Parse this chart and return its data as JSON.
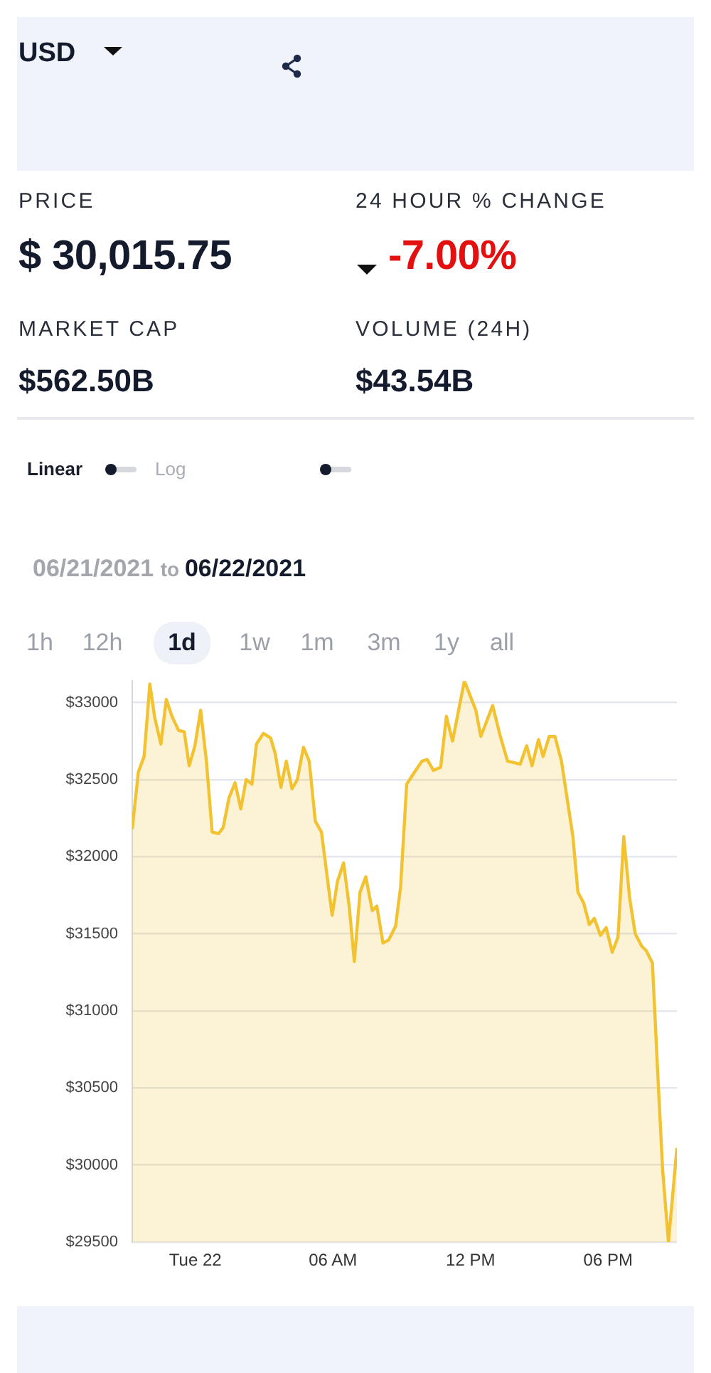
{
  "chart_data": [
    {
      "type": "other",
      "title": "USD",
      "annotations": [
        "PRICE",
        "$ 30,015.75",
        "24 HOUR % CHANGE",
        "-7.00%",
        "MARKET CAP",
        "$562.50B",
        "VOLUME (24H)",
        "$43.54B",
        "Linear",
        "Log"
      ]
    },
    {
      "type": "area",
      "title": "06/21/2021 to 06/22/2021",
      "annotations": [
        "1h",
        "12h",
        "1d",
        "1w",
        "1m",
        "3m",
        "1y",
        "all"
      ],
      "x": [
        "2021-06-21T21:15",
        "2021-06-21T21:31",
        "2021-06-21T21:46",
        "2021-06-21T22:01",
        "2021-06-21T22:14",
        "2021-06-21T22:30",
        "2021-06-21T22:44",
        "2021-06-21T22:59",
        "2021-06-21T23:16",
        "2021-06-21T23:31",
        "2021-06-21T23:44",
        "2021-06-21T23:59",
        "2021-06-22T00:14",
        "2021-06-22T00:29",
        "2021-06-22T00:44",
        "2021-06-22T01:01",
        "2021-06-22T01:13",
        "2021-06-22T01:28",
        "2021-06-22T01:44",
        "2021-06-22T01:59",
        "2021-06-22T02:13",
        "2021-06-22T02:28",
        "2021-06-22T02:40",
        "2021-06-22T02:58",
        "2021-06-22T03:17",
        "2021-06-22T03:29",
        "2021-06-22T03:44",
        "2021-06-22T03:58",
        "2021-06-22T04:13",
        "2021-06-22T04:27",
        "2021-06-22T04:43",
        "2021-06-22T04:58",
        "2021-06-22T05:14",
        "2021-06-22T05:30",
        "2021-06-22T05:58",
        "2021-06-22T06:12",
        "2021-06-22T06:28",
        "2021-06-22T06:43",
        "2021-06-22T06:56",
        "2021-06-22T07:11",
        "2021-06-22T07:26",
        "2021-06-22T07:43",
        "2021-06-22T07:55",
        "2021-06-22T08:11",
        "2021-06-22T08:26",
        "2021-06-22T08:44",
        "2021-06-22T08:57",
        "2021-06-22T09:13",
        "2021-06-22T09:34",
        "2021-06-22T09:53",
        "2021-06-22T10:07",
        "2021-06-22T10:23",
        "2021-06-22T10:42",
        "2021-06-22T10:57",
        "2021-06-22T11:13",
        "2021-06-22T11:44",
        "2021-06-22T12:14",
        "2021-06-22T12:27",
        "2021-06-22T12:58",
        "2021-06-22T13:17",
        "2021-06-22T13:37",
        "2021-06-22T14:10",
        "2021-06-22T14:27",
        "2021-06-22T14:41",
        "2021-06-22T14:58",
        "2021-06-22T15:10",
        "2021-06-22T15:26",
        "2021-06-22T15:41",
        "2021-06-22T15:58",
        "2021-06-22T16:28",
        "2021-06-22T16:41",
        "2021-06-22T16:56",
        "2021-06-22T17:11",
        "2021-06-22T17:24",
        "2021-06-22T17:40",
        "2021-06-22T17:55",
        "2021-06-22T18:11",
        "2021-06-22T18:26",
        "2021-06-22T18:41",
        "2021-06-22T18:56",
        "2021-06-22T19:11",
        "2021-06-22T19:28",
        "2021-06-22T19:40",
        "2021-06-22T19:56",
        "2021-06-22T20:11",
        "2021-06-22T20:23",
        "2021-06-22T20:38",
        "2021-06-22T21:00"
      ],
      "series": [
        {
          "color": "#f2c230",
          "values": [
            32180,
            32550,
            32650,
            33120,
            32900,
            32730,
            33020,
            32910,
            32820,
            32810,
            32590,
            32720,
            32950,
            32620,
            32160,
            32150,
            32190,
            32380,
            32480,
            32310,
            32500,
            32470,
            32730,
            32800,
            32770,
            32670,
            32450,
            32620,
            32440,
            32500,
            32710,
            32620,
            32230,
            32160,
            31620,
            31840,
            31960,
            31670,
            31320,
            31770,
            31870,
            31650,
            31680,
            31440,
            31460,
            31550,
            31800,
            32470,
            32550,
            32620,
            32630,
            32560,
            32580,
            32910,
            32750,
            33140,
            32950,
            32780,
            32980,
            32790,
            32620,
            32600,
            32720,
            32590,
            32760,
            32650,
            32780,
            32780,
            32620,
            32130,
            31770,
            31700,
            31560,
            31600,
            31490,
            31540,
            31380,
            31480,
            32130,
            31740,
            31500,
            31420,
            31390,
            31310,
            30540,
            29960,
            29500,
            30110
          ]
        }
      ],
      "xlim": [
        "2021-06-21T21:15",
        "2021-06-22T21:00"
      ],
      "xticks": [
        {
          "value": "2021-06-22T00:00",
          "label": "Tue 22"
        },
        {
          "value": "2021-06-22T06:00",
          "label": "06 AM"
        },
        {
          "value": "2021-06-22T12:00",
          "label": "12 PM"
        },
        {
          "value": "2021-06-22T18:00",
          "label": "06 PM"
        }
      ],
      "ylim": [
        29500,
        33140
      ],
      "yticks": [
        {
          "value": 29500,
          "label": "$29500"
        },
        {
          "value": 30000,
          "label": "$30000"
        },
        {
          "value": 30500,
          "label": "$30500"
        },
        {
          "value": 31000,
          "label": "$31000"
        },
        {
          "value": 31500,
          "label": "$31500"
        },
        {
          "value": 32000,
          "label": "$32000"
        },
        {
          "value": 32500,
          "label": "$32500"
        },
        {
          "value": 33000,
          "label": "$33000"
        }
      ],
      "grid": "y",
      "marker": "none"
    }
  ]
}
